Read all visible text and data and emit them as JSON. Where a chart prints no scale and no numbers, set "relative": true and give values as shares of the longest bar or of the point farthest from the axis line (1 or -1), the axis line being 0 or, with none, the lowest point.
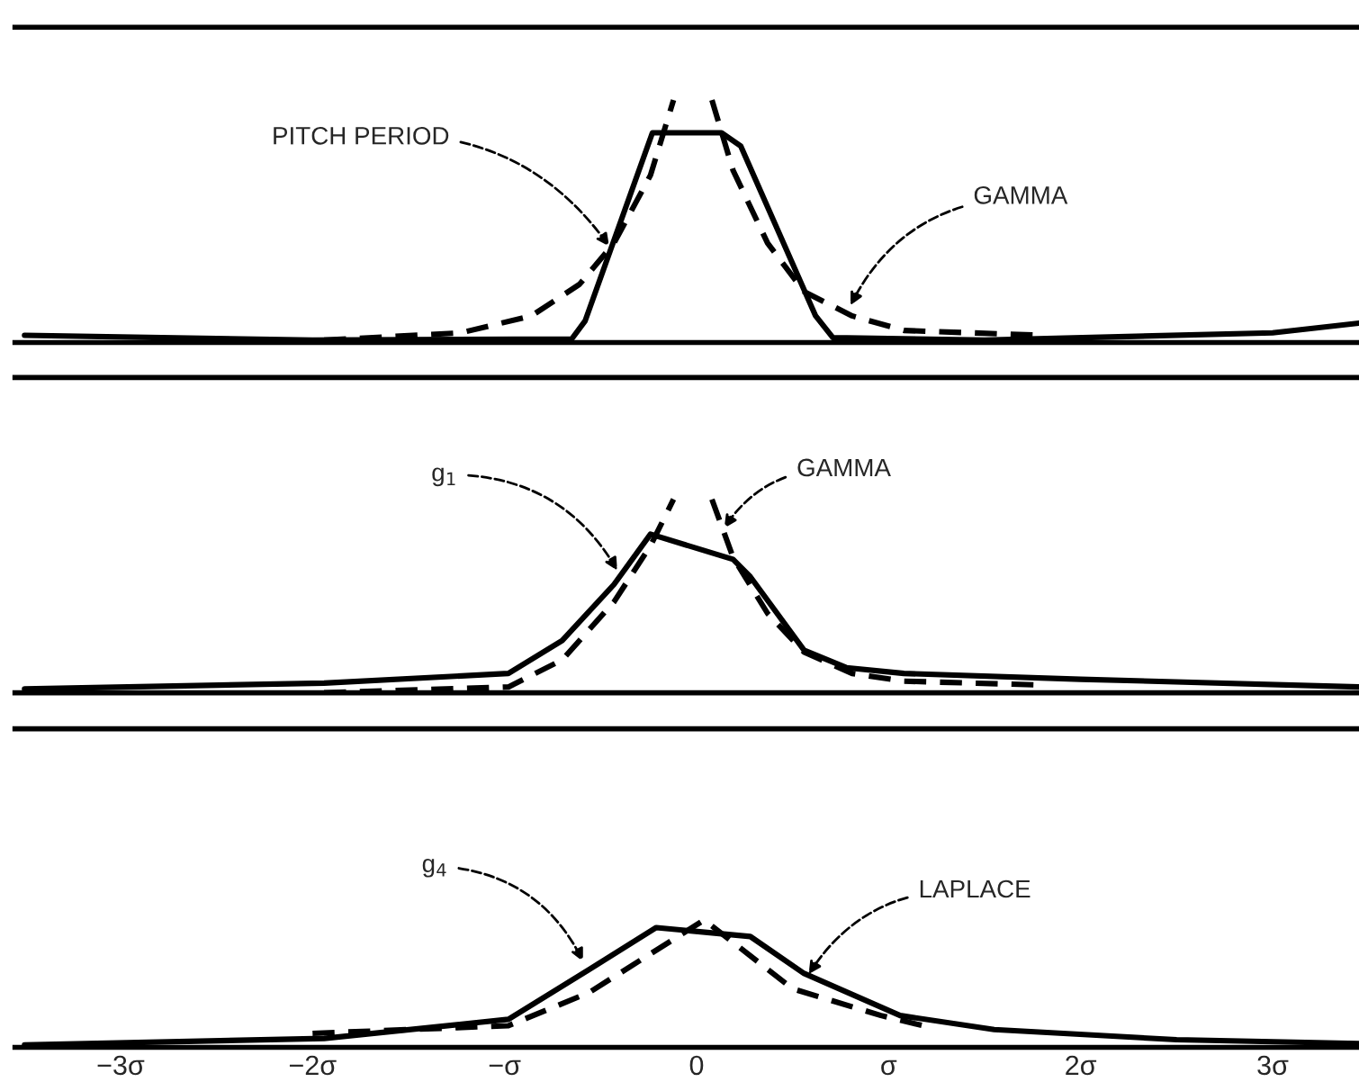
{
  "chart_data": [
    {
      "type": "line",
      "relative": true,
      "xlim": [
        -3.55,
        3.45
      ],
      "xticks": [
        {
          "value": -3,
          "label": null
        },
        {
          "value": -2,
          "label": null
        },
        {
          "value": -1,
          "label": null
        },
        {
          "value": 0,
          "label": null
        },
        {
          "value": 1,
          "label": null
        },
        {
          "value": 2,
          "label": null
        },
        {
          "value": 3,
          "label": null
        }
      ],
      "tick_labels": false,
      "grid": false,
      "legend": false,
      "series": [
        {
          "color": "#000000",
          "line_style": "solid",
          "x": [
            -3.5,
            -2,
            -0.65,
            -0.58,
            -0.23,
            0.13,
            0.23,
            0.62,
            0.71,
            1.5,
            3.0,
            3.45
          ],
          "values": [
            0.03,
            0.01,
            0.015,
            0.09,
            0.865,
            0.865,
            0.81,
            0.11,
            0.02,
            0.01,
            0.04,
            0.08
          ]
        },
        {
          "color": "#000000",
          "line_style": "dashed",
          "x": [
            -1.94,
            -1.23,
            -0.86,
            -0.61,
            -0.43,
            -0.24,
            -0.12,
            0,
            0.08,
            0.19,
            0.37,
            0.56,
            0.81,
            1.08,
            1.8
          ],
          "values": [
            0.01,
            0.04,
            0.11,
            0.24,
            0.41,
            0.69,
            1.0,
            null,
            1.0,
            0.71,
            0.41,
            0.21,
            0.11,
            0.05,
            0.03
          ]
        }
      ],
      "annotations": [
        {
          "text": "PITCH PERIOD",
          "x": -0.44,
          "y": 0.38
        },
        {
          "text": "GAMMA",
          "x": 0.79,
          "y": 0.135
        }
      ]
    },
    {
      "type": "line",
      "relative": true,
      "xlim": [
        -3.55,
        3.45
      ],
      "xticks": [
        {
          "value": -3,
          "label": null
        },
        {
          "value": -2,
          "label": null
        },
        {
          "value": -1,
          "label": null
        },
        {
          "value": 0,
          "label": null
        },
        {
          "value": 1,
          "label": null
        },
        {
          "value": 2,
          "label": null
        },
        {
          "value": 3,
          "label": null
        }
      ],
      "tick_labels": false,
      "grid": false,
      "legend": false,
      "series": [
        {
          "color": "#000000",
          "line_style": "solid",
          "x": [
            -3.5,
            -1.94,
            -0.98,
            -0.7,
            -0.43,
            -0.24,
            0.19,
            0.28,
            0.56,
            0.78,
            1.08,
            2.0,
            3.45
          ],
          "values": [
            0.02,
            0.05,
            0.1,
            0.27,
            0.56,
            0.82,
            0.69,
            0.6,
            0.22,
            0.13,
            0.1,
            0.07,
            0.03
          ]
        },
        {
          "color": "#000000",
          "line_style": "dashed",
          "x": [
            -1.94,
            -0.98,
            -0.7,
            -0.43,
            -0.24,
            -0.12,
            0,
            0.08,
            0.19,
            0.37,
            0.56,
            0.81,
            1.08,
            1.8
          ],
          "values": [
            0.0,
            0.03,
            0.17,
            0.47,
            0.76,
            1.0,
            null,
            1.0,
            0.7,
            0.41,
            0.21,
            0.1,
            0.06,
            0.04
          ]
        }
      ],
      "annotations": [
        {
          "text": "g$_{1}$",
          "x": -0.4,
          "y": 0.61
        },
        {
          "text": "GAMMA",
          "x": 0.13,
          "y": 0.83
        }
      ]
    },
    {
      "type": "line",
      "relative": true,
      "xlim": [
        -3.55,
        3.45
      ],
      "xticks": [
        {
          "value": -3,
          "label": "−3σ"
        },
        {
          "value": -2,
          "label": "−2σ"
        },
        {
          "value": -1,
          "label": "−σ"
        },
        0,
        {
          "value": 1,
          "label": "σ"
        },
        {
          "value": 2,
          "label": "2σ"
        },
        {
          "value": 3,
          "label": "3σ"
        }
      ],
      "tick_labels": "x",
      "grid": false,
      "legend": false,
      "series": [
        {
          "color": "#000000",
          "line_style": "solid",
          "x": [
            -3.5,
            -1.94,
            -0.98,
            -0.56,
            -0.21,
            0.28,
            0.56,
            1.06,
            1.55,
            2.5,
            3.45
          ],
          "values": [
            0.02,
            0.07,
            0.22,
            0.61,
            0.94,
            0.87,
            0.58,
            0.25,
            0.14,
            0.06,
            0.03
          ]
        },
        {
          "color": "#000000",
          "line_style": "dashed",
          "x": [
            -2.0,
            -0.98,
            -0.56,
            0.04,
            0.5,
            0.96,
            1.18
          ],
          "values": [
            0.11,
            0.17,
            0.43,
            1.0,
            0.46,
            0.25,
            0.17
          ]
        }
      ],
      "annotations": [
        {
          "text": "g$_{4}$",
          "x": -0.58,
          "y": 0.64
        },
        {
          "text": "LAPLACE",
          "x": 0.57,
          "y": 0.54
        }
      ]
    }
  ]
}
